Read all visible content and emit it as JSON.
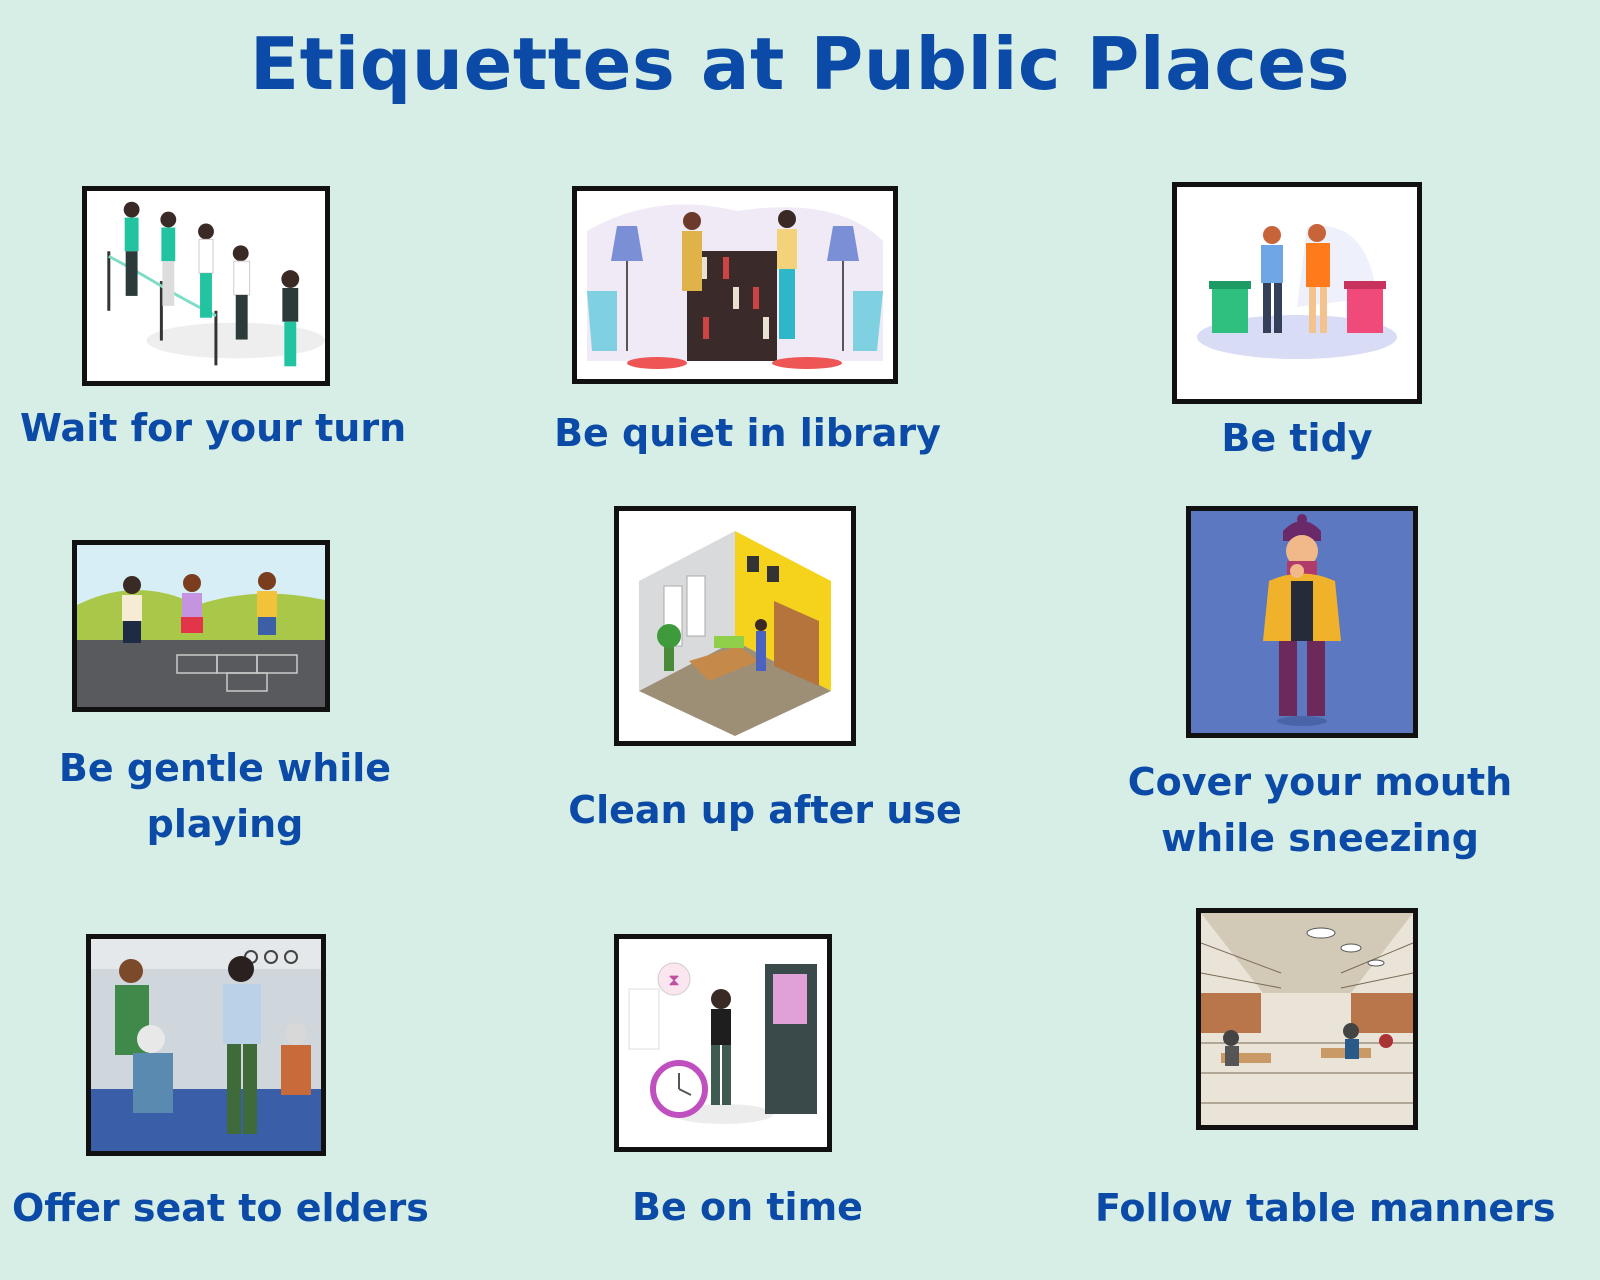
{
  "title": "Etiquettes at Public Places",
  "colors": {
    "background": "#d6eee5",
    "text": "#0b4aa6",
    "frame": "#111111"
  },
  "cards": [
    {
      "caption": "Wait for your turn",
      "image": "queue-illustration"
    },
    {
      "caption": "Be quiet in library",
      "image": "library-illustration"
    },
    {
      "caption": "Be tidy",
      "image": "recycling-bins-illustration"
    },
    {
      "caption_lines": [
        "Be gentle while",
        "playing"
      ],
      "image": "kids-hopscotch-illustration"
    },
    {
      "caption": "Clean up after use",
      "image": "isometric-room-illustration"
    },
    {
      "caption_lines": [
        "Cover your mouth",
        "while sneezing"
      ],
      "image": "sneezing-person-illustration"
    },
    {
      "caption": "Offer seat to elders",
      "image": "train-seat-illustration"
    },
    {
      "caption": "Be on time",
      "image": "clock-door-illustration"
    },
    {
      "caption": "Follow table manners",
      "image": "food-court-illustration"
    }
  ]
}
